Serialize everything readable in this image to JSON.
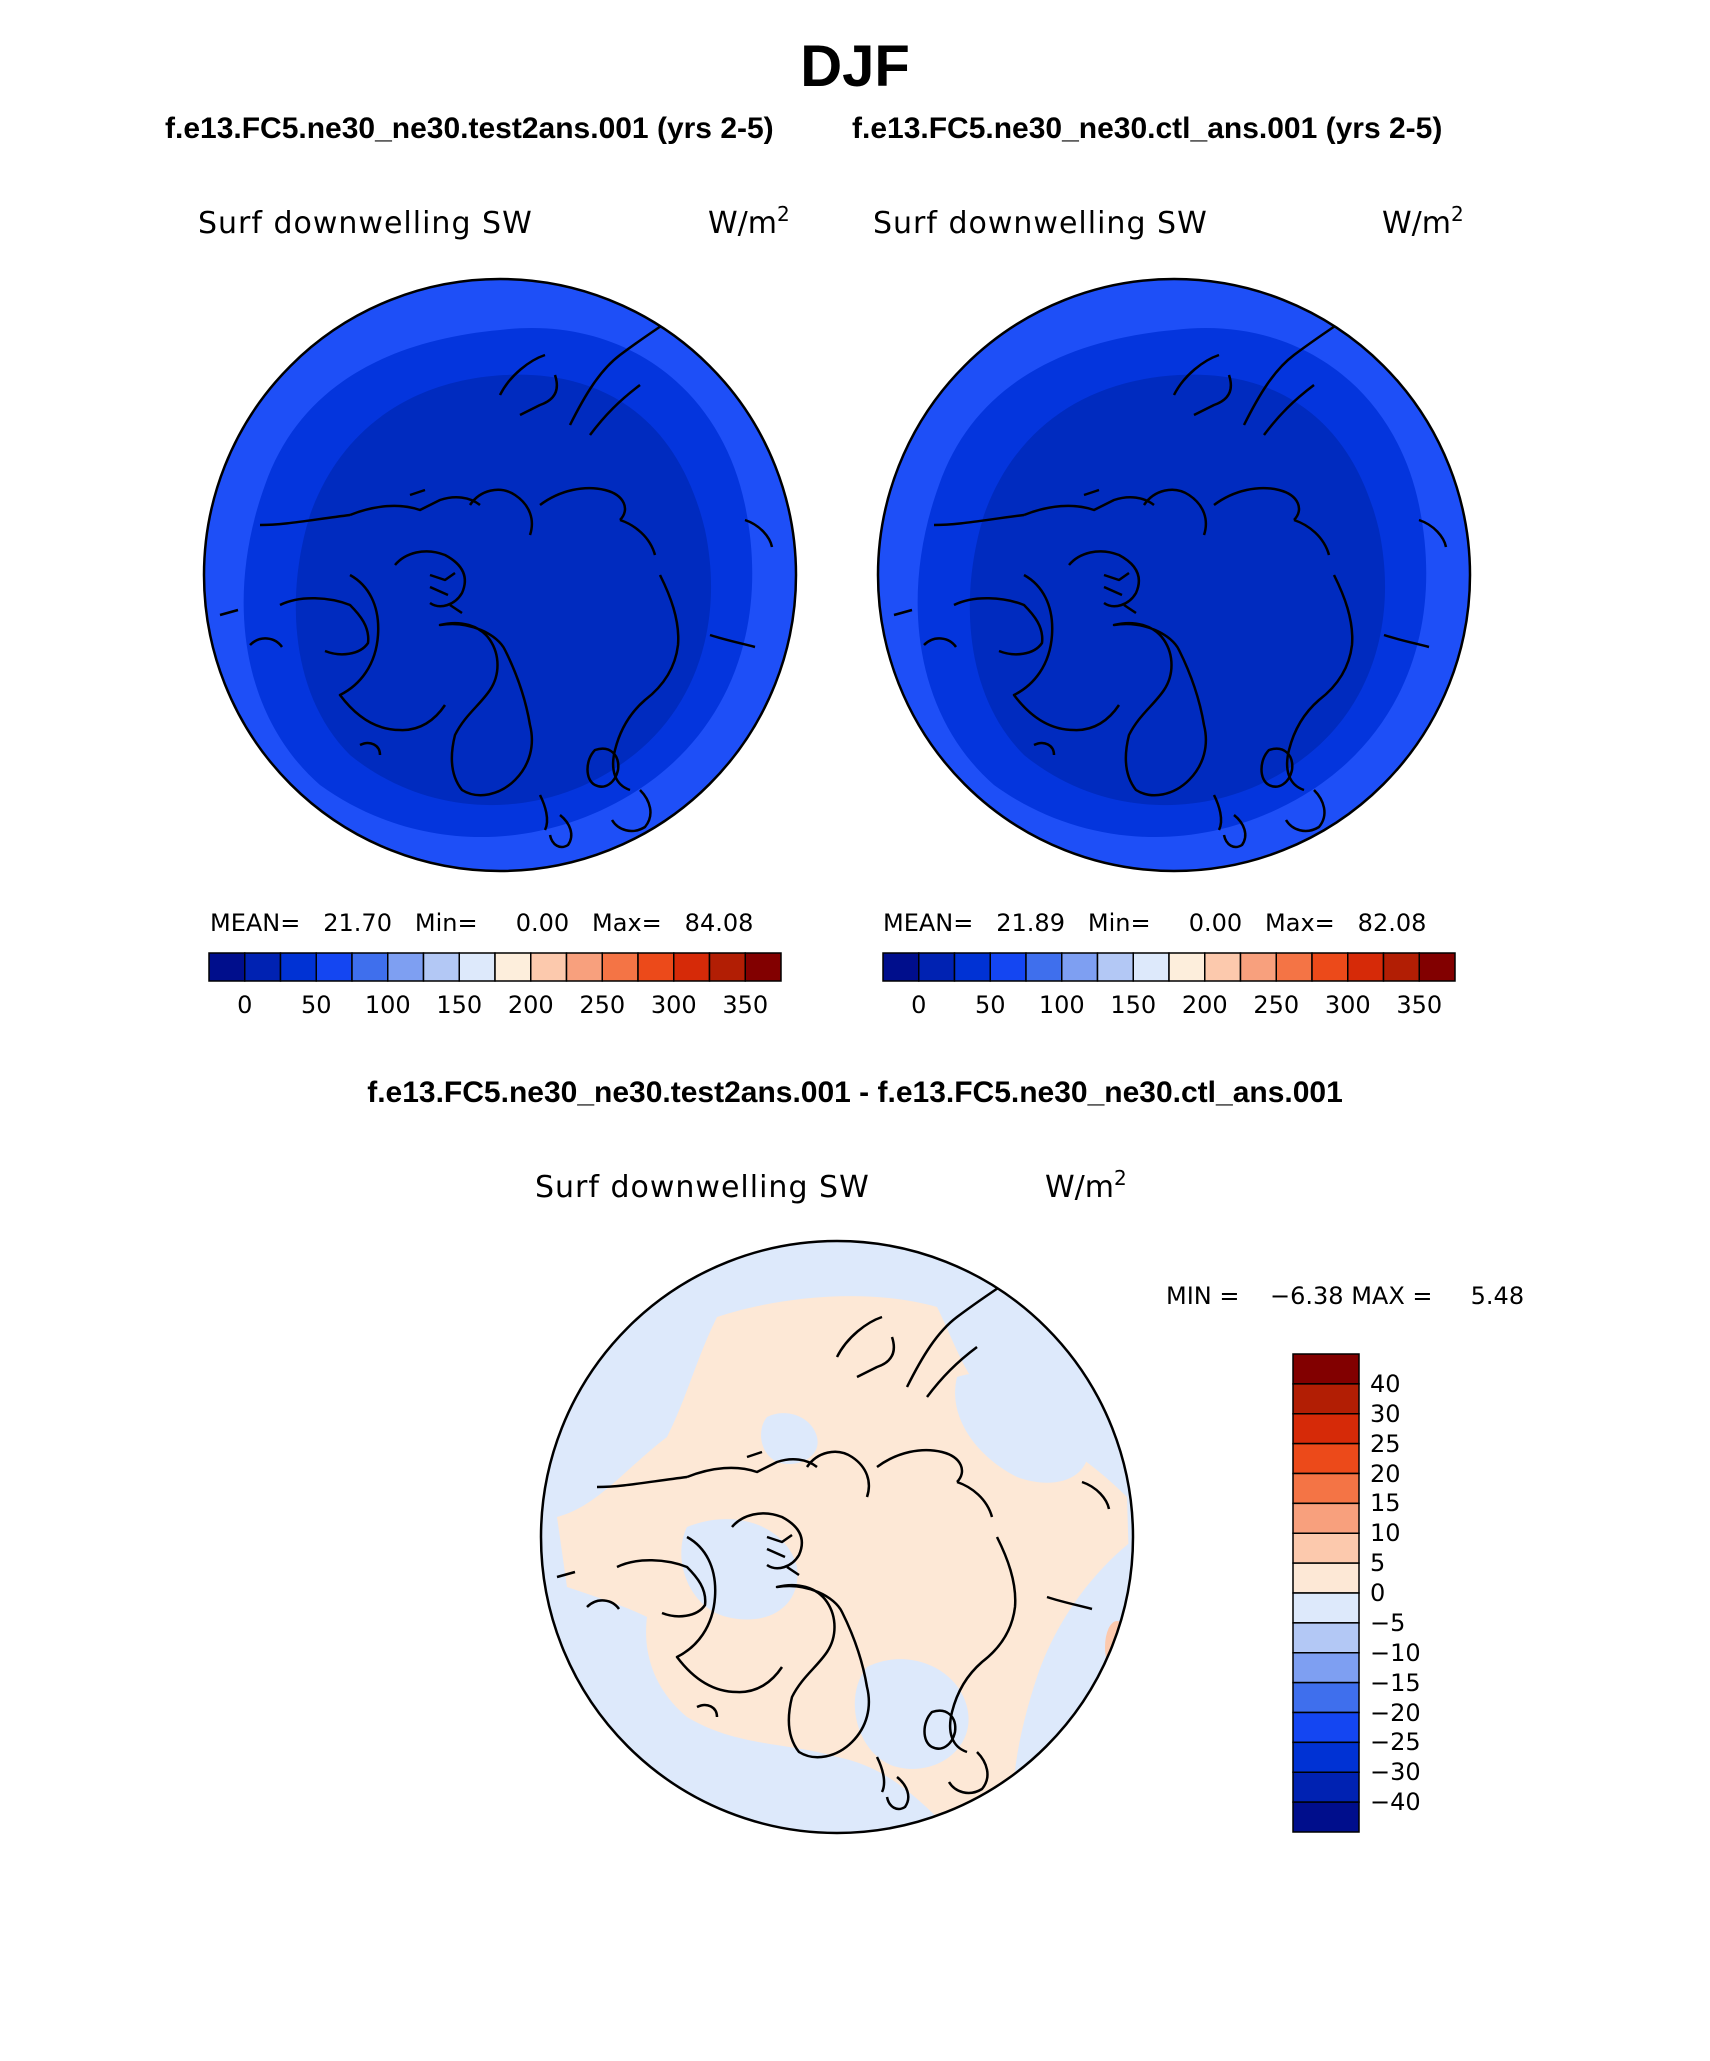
{
  "figure": {
    "title": "DJF",
    "test_case_label": "f.e13.FC5.ne30_ne30.test2ans.001 (yrs 2-5)",
    "ctl_case_label": "f.e13.FC5.ne30_ne30.ctl_ans.001 (yrs 2-5)",
    "diff_case_label": "f.e13.FC5.ne30_ne30.test2ans.001 - f.e13.FC5.ne30_ne30.ctl_ans.001"
  },
  "panels": {
    "test": {
      "variable": "Surf downwelling SW",
      "units_base": "W/m",
      "units_exp": "2",
      "mean_label": "MEAN=",
      "mean": "21.70",
      "min_label": "Min=",
      "min": "0.00",
      "max_label": "Max=",
      "max": "84.08"
    },
    "ctl": {
      "variable": "Surf downwelling SW",
      "units_base": "W/m",
      "units_exp": "2",
      "mean_label": "MEAN=",
      "mean": "21.89",
      "min_label": "Min=",
      "min": "0.00",
      "max_label": "Max=",
      "max": "82.08"
    },
    "diff": {
      "variable": "Surf downwelling SW",
      "units_base": "W/m",
      "units_exp": "2",
      "min_label": "MIN =",
      "min": "−6.38",
      "max_label": "MAX =",
      "max": "5.48"
    }
  },
  "colors": {
    "abs_palette": [
      "#000e8c",
      "#0022b2",
      "#0032d4",
      "#1446f2",
      "#3f6fed",
      "#7e9ff2",
      "#b3c8f5",
      "#dde9fb",
      "#fdeedc",
      "#fcc9ad",
      "#f8a07d",
      "#f47445",
      "#ec4a1a",
      "#d62a08",
      "#b21e04",
      "#820000"
    ],
    "diff_palette": [
      "#000e8c",
      "#0022b2",
      "#0032d4",
      "#1446f2",
      "#3f6fed",
      "#7e9ff2",
      "#b3c8f5",
      "#dde9fb",
      "#fde8d6",
      "#fcc9ad",
      "#f8a07d",
      "#f47445",
      "#ec4a1a",
      "#d62a08",
      "#b21e04",
      "#820000"
    ],
    "abs_outer": "#1e4ff7",
    "abs_mid": "#0435dd",
    "abs_inner": "#002bbf",
    "diff_pos": "#fde8d6",
    "diff_neg": "#dde9fb",
    "diff_hot": "#fcc9ad",
    "coast": "#000000"
  },
  "chart_data": [
    {
      "type": "heatmap",
      "projection": "north polar stereographic",
      "title": "Surf downwelling SW",
      "case": "f.e13.FC5.ne30_ne30.test2ans.001 (yrs 2-5)",
      "units": "W/m2",
      "colorbar_ticks": [
        "0",
        "50",
        "100",
        "150",
        "200",
        "250",
        "300",
        "350"
      ],
      "mean": 21.7,
      "min": 0.0,
      "max": 84.08
    },
    {
      "type": "heatmap",
      "projection": "north polar stereographic",
      "title": "Surf downwelling SW",
      "case": "f.e13.FC5.ne30_ne30.ctl_ans.001 (yrs 2-5)",
      "units": "W/m2",
      "colorbar_ticks": [
        "0",
        "50",
        "100",
        "150",
        "200",
        "250",
        "300",
        "350"
      ],
      "mean": 21.89,
      "min": 0.0,
      "max": 82.08
    },
    {
      "type": "heatmap",
      "projection": "north polar stereographic",
      "title": "Surf downwelling SW",
      "case": "f.e13.FC5.ne30_ne30.test2ans.001 - f.e13.FC5.ne30_ne30.ctl_ans.001",
      "units": "W/m2",
      "colorbar_ticks": [
        "40",
        "30",
        "25",
        "20",
        "15",
        "10",
        "5",
        "0",
        "−5",
        "−10",
        "−15",
        "−20",
        "−25",
        "−30",
        "−40"
      ],
      "min": -6.38,
      "max": 5.48
    }
  ]
}
